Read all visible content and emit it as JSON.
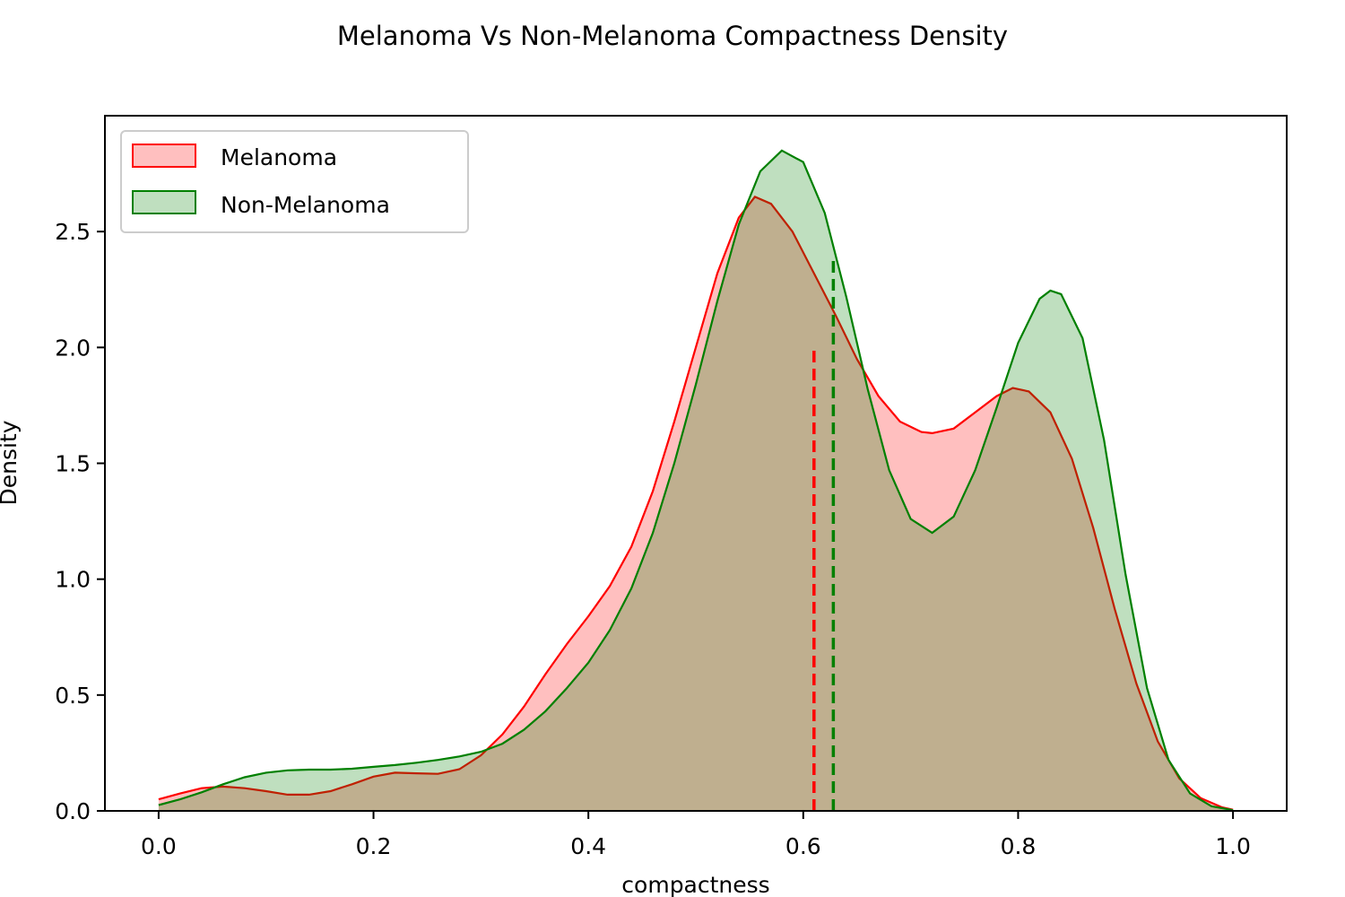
{
  "chart_data": {
    "type": "area",
    "title": "Melanoma Vs Non-Melanoma Compactness Density",
    "xlabel": "compactness",
    "ylabel": "Density",
    "xlim": [
      -0.05,
      1.05
    ],
    "ylim": [
      0,
      3.0
    ],
    "grid": false,
    "legend_position": "top-left",
    "x_ticks": [
      0.0,
      0.2,
      0.4,
      0.6,
      0.8,
      1.0
    ],
    "x_tick_labels": [
      "0.0",
      "0.2",
      "0.4",
      "0.6",
      "0.8",
      "1.0"
    ],
    "y_ticks": [
      0.0,
      0.5,
      1.0,
      1.5,
      2.0,
      2.5
    ],
    "y_tick_labels": [
      "0.0",
      "0.5",
      "1.0",
      "1.5",
      "2.0",
      "2.5"
    ],
    "series": [
      {
        "name": "Melanoma",
        "color": "#ff0000",
        "fill": "#ff0000",
        "fill_opacity": 0.25,
        "mean_line": {
          "x": 0.61,
          "y_top": 2.0
        },
        "points": [
          [
            0.0,
            0.05
          ],
          [
            0.02,
            0.075
          ],
          [
            0.04,
            0.098
          ],
          [
            0.06,
            0.105
          ],
          [
            0.08,
            0.098
          ],
          [
            0.1,
            0.085
          ],
          [
            0.12,
            0.07
          ],
          [
            0.14,
            0.07
          ],
          [
            0.16,
            0.085
          ],
          [
            0.18,
            0.115
          ],
          [
            0.2,
            0.148
          ],
          [
            0.22,
            0.165
          ],
          [
            0.24,
            0.162
          ],
          [
            0.26,
            0.16
          ],
          [
            0.28,
            0.18
          ],
          [
            0.3,
            0.24
          ],
          [
            0.32,
            0.33
          ],
          [
            0.34,
            0.45
          ],
          [
            0.36,
            0.59
          ],
          [
            0.38,
            0.72
          ],
          [
            0.4,
            0.84
          ],
          [
            0.42,
            0.97
          ],
          [
            0.44,
            1.14
          ],
          [
            0.46,
            1.38
          ],
          [
            0.48,
            1.68
          ],
          [
            0.5,
            2.0
          ],
          [
            0.52,
            2.32
          ],
          [
            0.54,
            2.56
          ],
          [
            0.555,
            2.65
          ],
          [
            0.57,
            2.62
          ],
          [
            0.59,
            2.5
          ],
          [
            0.61,
            2.32
          ],
          [
            0.63,
            2.14
          ],
          [
            0.65,
            1.95
          ],
          [
            0.67,
            1.79
          ],
          [
            0.69,
            1.68
          ],
          [
            0.71,
            1.635
          ],
          [
            0.72,
            1.63
          ],
          [
            0.74,
            1.65
          ],
          [
            0.76,
            1.72
          ],
          [
            0.78,
            1.79
          ],
          [
            0.795,
            1.825
          ],
          [
            0.81,
            1.81
          ],
          [
            0.83,
            1.72
          ],
          [
            0.85,
            1.52
          ],
          [
            0.87,
            1.22
          ],
          [
            0.89,
            0.87
          ],
          [
            0.91,
            0.55
          ],
          [
            0.93,
            0.3
          ],
          [
            0.95,
            0.14
          ],
          [
            0.97,
            0.055
          ],
          [
            0.99,
            0.015
          ],
          [
            1.0,
            0.005
          ]
        ]
      },
      {
        "name": "Non-Melanoma",
        "color": "#008000",
        "fill": "#008000",
        "fill_opacity": 0.25,
        "mean_line": {
          "x": 0.628,
          "y_top": 2.4
        },
        "points": [
          [
            0.0,
            0.025
          ],
          [
            0.02,
            0.05
          ],
          [
            0.04,
            0.08
          ],
          [
            0.06,
            0.115
          ],
          [
            0.08,
            0.145
          ],
          [
            0.1,
            0.165
          ],
          [
            0.12,
            0.175
          ],
          [
            0.14,
            0.178
          ],
          [
            0.16,
            0.178
          ],
          [
            0.18,
            0.182
          ],
          [
            0.2,
            0.19
          ],
          [
            0.22,
            0.198
          ],
          [
            0.24,
            0.208
          ],
          [
            0.26,
            0.22
          ],
          [
            0.28,
            0.235
          ],
          [
            0.3,
            0.255
          ],
          [
            0.32,
            0.29
          ],
          [
            0.34,
            0.35
          ],
          [
            0.36,
            0.43
          ],
          [
            0.38,
            0.53
          ],
          [
            0.4,
            0.64
          ],
          [
            0.42,
            0.78
          ],
          [
            0.44,
            0.96
          ],
          [
            0.46,
            1.2
          ],
          [
            0.48,
            1.5
          ],
          [
            0.5,
            1.84
          ],
          [
            0.52,
            2.2
          ],
          [
            0.54,
            2.53
          ],
          [
            0.56,
            2.76
          ],
          [
            0.58,
            2.85
          ],
          [
            0.6,
            2.8
          ],
          [
            0.62,
            2.58
          ],
          [
            0.64,
            2.22
          ],
          [
            0.66,
            1.82
          ],
          [
            0.68,
            1.47
          ],
          [
            0.7,
            1.26
          ],
          [
            0.72,
            1.2
          ],
          [
            0.74,
            1.27
          ],
          [
            0.76,
            1.47
          ],
          [
            0.78,
            1.74
          ],
          [
            0.8,
            2.02
          ],
          [
            0.82,
            2.21
          ],
          [
            0.83,
            2.245
          ],
          [
            0.84,
            2.23
          ],
          [
            0.86,
            2.04
          ],
          [
            0.88,
            1.6
          ],
          [
            0.9,
            1.02
          ],
          [
            0.92,
            0.53
          ],
          [
            0.94,
            0.22
          ],
          [
            0.96,
            0.075
          ],
          [
            0.98,
            0.02
          ],
          [
            1.0,
            0.003
          ]
        ]
      }
    ]
  }
}
